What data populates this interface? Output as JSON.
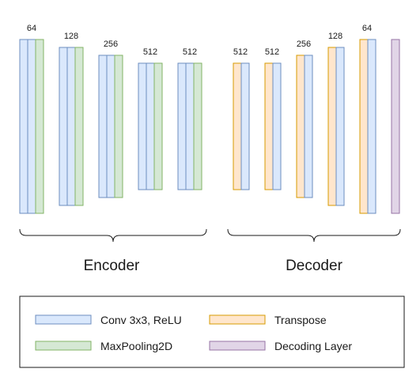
{
  "colors": {
    "conv": {
      "fill": "#dae8fc",
      "stroke": "#6c8ebf"
    },
    "pool": {
      "fill": "#d5e8d4",
      "stroke": "#82b366"
    },
    "transpose": {
      "fill": "#ffe6cc",
      "stroke": "#d79b00"
    },
    "decoding": {
      "fill": "#e1d5e7",
      "stroke": "#9673a6"
    },
    "ink": "#1a1a1a"
  },
  "diagram": {
    "encoder_label": "Encoder",
    "decoder_label": "Decoder",
    "encoder_blocks": [
      {
        "label": "64",
        "layers": [
          "conv",
          "conv",
          "pool"
        ]
      },
      {
        "label": "128",
        "layers": [
          "conv",
          "conv",
          "pool"
        ]
      },
      {
        "label": "256",
        "layers": [
          "conv",
          "conv",
          "pool"
        ]
      },
      {
        "label": "512",
        "layers": [
          "conv",
          "conv",
          "pool"
        ]
      },
      {
        "label": "512",
        "layers": [
          "conv",
          "conv",
          "pool"
        ]
      }
    ],
    "decoder_blocks": [
      {
        "label": "512",
        "layers": [
          "transpose",
          "conv"
        ]
      },
      {
        "label": "512",
        "layers": [
          "transpose",
          "conv"
        ]
      },
      {
        "label": "256",
        "layers": [
          "transpose",
          "conv"
        ]
      },
      {
        "label": "128",
        "layers": [
          "transpose",
          "conv"
        ]
      },
      {
        "label": "64",
        "layers": [
          "transpose",
          "conv"
        ]
      },
      {
        "label": "",
        "layers": [
          "decoding"
        ]
      }
    ]
  },
  "legend": {
    "items": [
      {
        "label": "Conv 3x3, ReLU",
        "kind": "conv"
      },
      {
        "label": "Transpose",
        "kind": "transpose"
      },
      {
        "label": "MaxPooling2D",
        "kind": "pool"
      },
      {
        "label": "Decoding Layer",
        "kind": "decoding"
      }
    ]
  }
}
